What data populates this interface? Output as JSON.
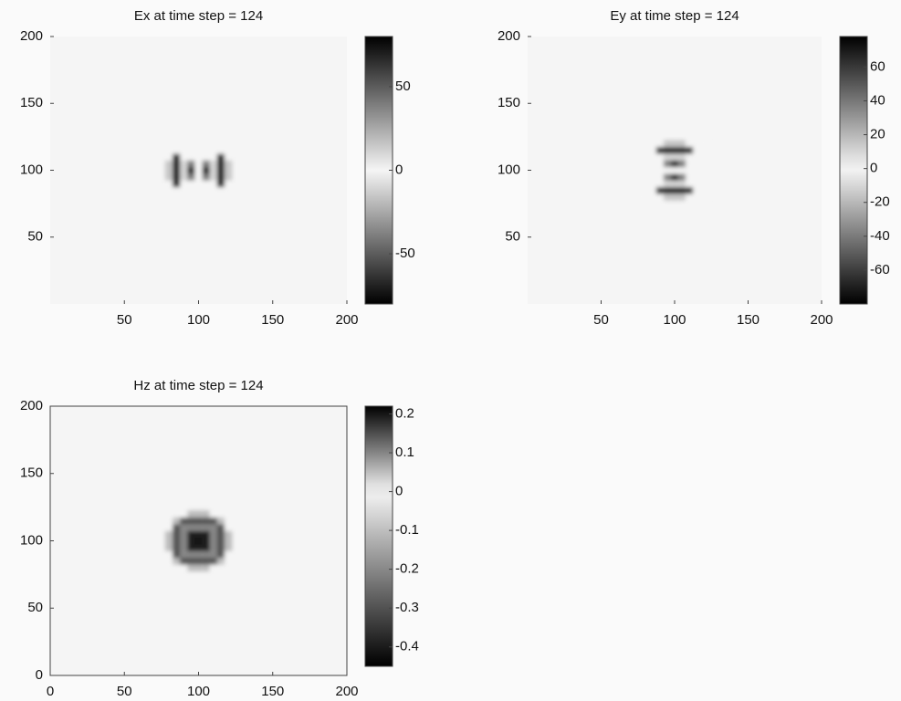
{
  "chart_data": [
    {
      "type": "heatmap",
      "title": "Ex at time step = 124",
      "x": [
        80,
        85,
        90,
        95,
        100,
        105,
        110,
        115,
        120
      ],
      "y": [
        80,
        85,
        90,
        95,
        100,
        105,
        110,
        115,
        120
      ],
      "z": [
        [
          0,
          0,
          0,
          0,
          0,
          0,
          0,
          0,
          0
        ],
        [
          0,
          0,
          0,
          0,
          0,
          0,
          0,
          0,
          0
        ],
        [
          0,
          70,
          0,
          0,
          0,
          0,
          0,
          70,
          0
        ],
        [
          15,
          70,
          10,
          -40,
          0,
          -40,
          10,
          70,
          15
        ],
        [
          15,
          70,
          10,
          -70,
          0,
          -70,
          10,
          70,
          15
        ],
        [
          15,
          70,
          10,
          -40,
          0,
          -40,
          10,
          70,
          15
        ],
        [
          0,
          70,
          0,
          0,
          0,
          0,
          0,
          70,
          0
        ],
        [
          0,
          0,
          0,
          0,
          0,
          0,
          0,
          0,
          0
        ],
        [
          0,
          0,
          0,
          0,
          0,
          0,
          0,
          0,
          0
        ]
      ],
      "xlim": [
        0,
        200
      ],
      "ylim": [
        0,
        200
      ],
      "xticks": [
        50,
        100,
        150,
        200
      ],
      "yticks": [
        50,
        100,
        150,
        200
      ],
      "clim": [
        -80,
        80
      ],
      "cticks": [
        -50,
        0,
        50
      ]
    },
    {
      "type": "heatmap",
      "title": "Ey at time step = 124",
      "x": [
        80,
        85,
        90,
        95,
        100,
        105,
        110,
        115,
        120
      ],
      "y": [
        80,
        85,
        90,
        95,
        100,
        105,
        110,
        115,
        120
      ],
      "z": [
        [
          0,
          0,
          0,
          15,
          15,
          15,
          0,
          0,
          0
        ],
        [
          0,
          0,
          70,
          70,
          70,
          70,
          70,
          0,
          0
        ],
        [
          0,
          0,
          0,
          10,
          10,
          10,
          0,
          0,
          0
        ],
        [
          0,
          0,
          0,
          -40,
          -70,
          -40,
          0,
          0,
          0
        ],
        [
          0,
          0,
          0,
          0,
          0,
          0,
          0,
          0,
          0
        ],
        [
          0,
          0,
          0,
          -40,
          -70,
          -40,
          0,
          0,
          0
        ],
        [
          0,
          0,
          0,
          10,
          10,
          10,
          0,
          0,
          0
        ],
        [
          0,
          0,
          70,
          70,
          70,
          70,
          70,
          0,
          0
        ],
        [
          0,
          0,
          0,
          15,
          15,
          15,
          0,
          0,
          0
        ]
      ],
      "xlim": [
        0,
        200
      ],
      "ylim": [
        0,
        200
      ],
      "xticks": [
        50,
        100,
        150,
        200
      ],
      "yticks": [
        50,
        100,
        150,
        200
      ],
      "clim": [
        -80,
        78
      ],
      "cticks": [
        -60,
        -40,
        -20,
        0,
        20,
        40,
        60
      ]
    },
    {
      "type": "heatmap",
      "title": "Hz at time step = 124",
      "x": [
        80,
        85,
        90,
        95,
        100,
        105,
        110,
        115,
        120
      ],
      "y": [
        80,
        85,
        90,
        95,
        100,
        105,
        110,
        115,
        120
      ],
      "z": [
        [
          0,
          0,
          0,
          0.05,
          0.05,
          0.05,
          0,
          0,
          0
        ],
        [
          0,
          0.05,
          -0.3,
          -0.3,
          -0.3,
          -0.3,
          -0.3,
          0.05,
          0
        ],
        [
          0,
          -0.3,
          -0.2,
          0.1,
          0.1,
          0.1,
          -0.2,
          -0.3,
          0
        ],
        [
          0.05,
          -0.3,
          0.1,
          -0.4,
          -0.4,
          -0.4,
          0.1,
          -0.3,
          0.05
        ],
        [
          0.05,
          -0.3,
          0.1,
          -0.4,
          0.2,
          -0.4,
          0.1,
          -0.3,
          0.05
        ],
        [
          0.05,
          -0.3,
          0.1,
          -0.4,
          -0.4,
          -0.4,
          0.1,
          -0.3,
          0.05
        ],
        [
          0,
          -0.3,
          -0.2,
          0.1,
          0.1,
          0.1,
          -0.2,
          -0.3,
          0
        ],
        [
          0,
          0.05,
          -0.3,
          -0.3,
          -0.3,
          -0.3,
          -0.3,
          0.05,
          0
        ],
        [
          0,
          0,
          0,
          0.05,
          0.05,
          0.05,
          0,
          0,
          0
        ]
      ],
      "xlim": [
        0,
        200
      ],
      "ylim": [
        0,
        200
      ],
      "xticks": [
        0,
        50,
        100,
        150,
        200
      ],
      "yticks": [
        0,
        50,
        100,
        150,
        200
      ],
      "clim": [
        -0.45,
        0.22
      ],
      "cticks": [
        -0.4,
        -0.3,
        -0.2,
        -0.1,
        0,
        0.1,
        0.2
      ]
    }
  ]
}
